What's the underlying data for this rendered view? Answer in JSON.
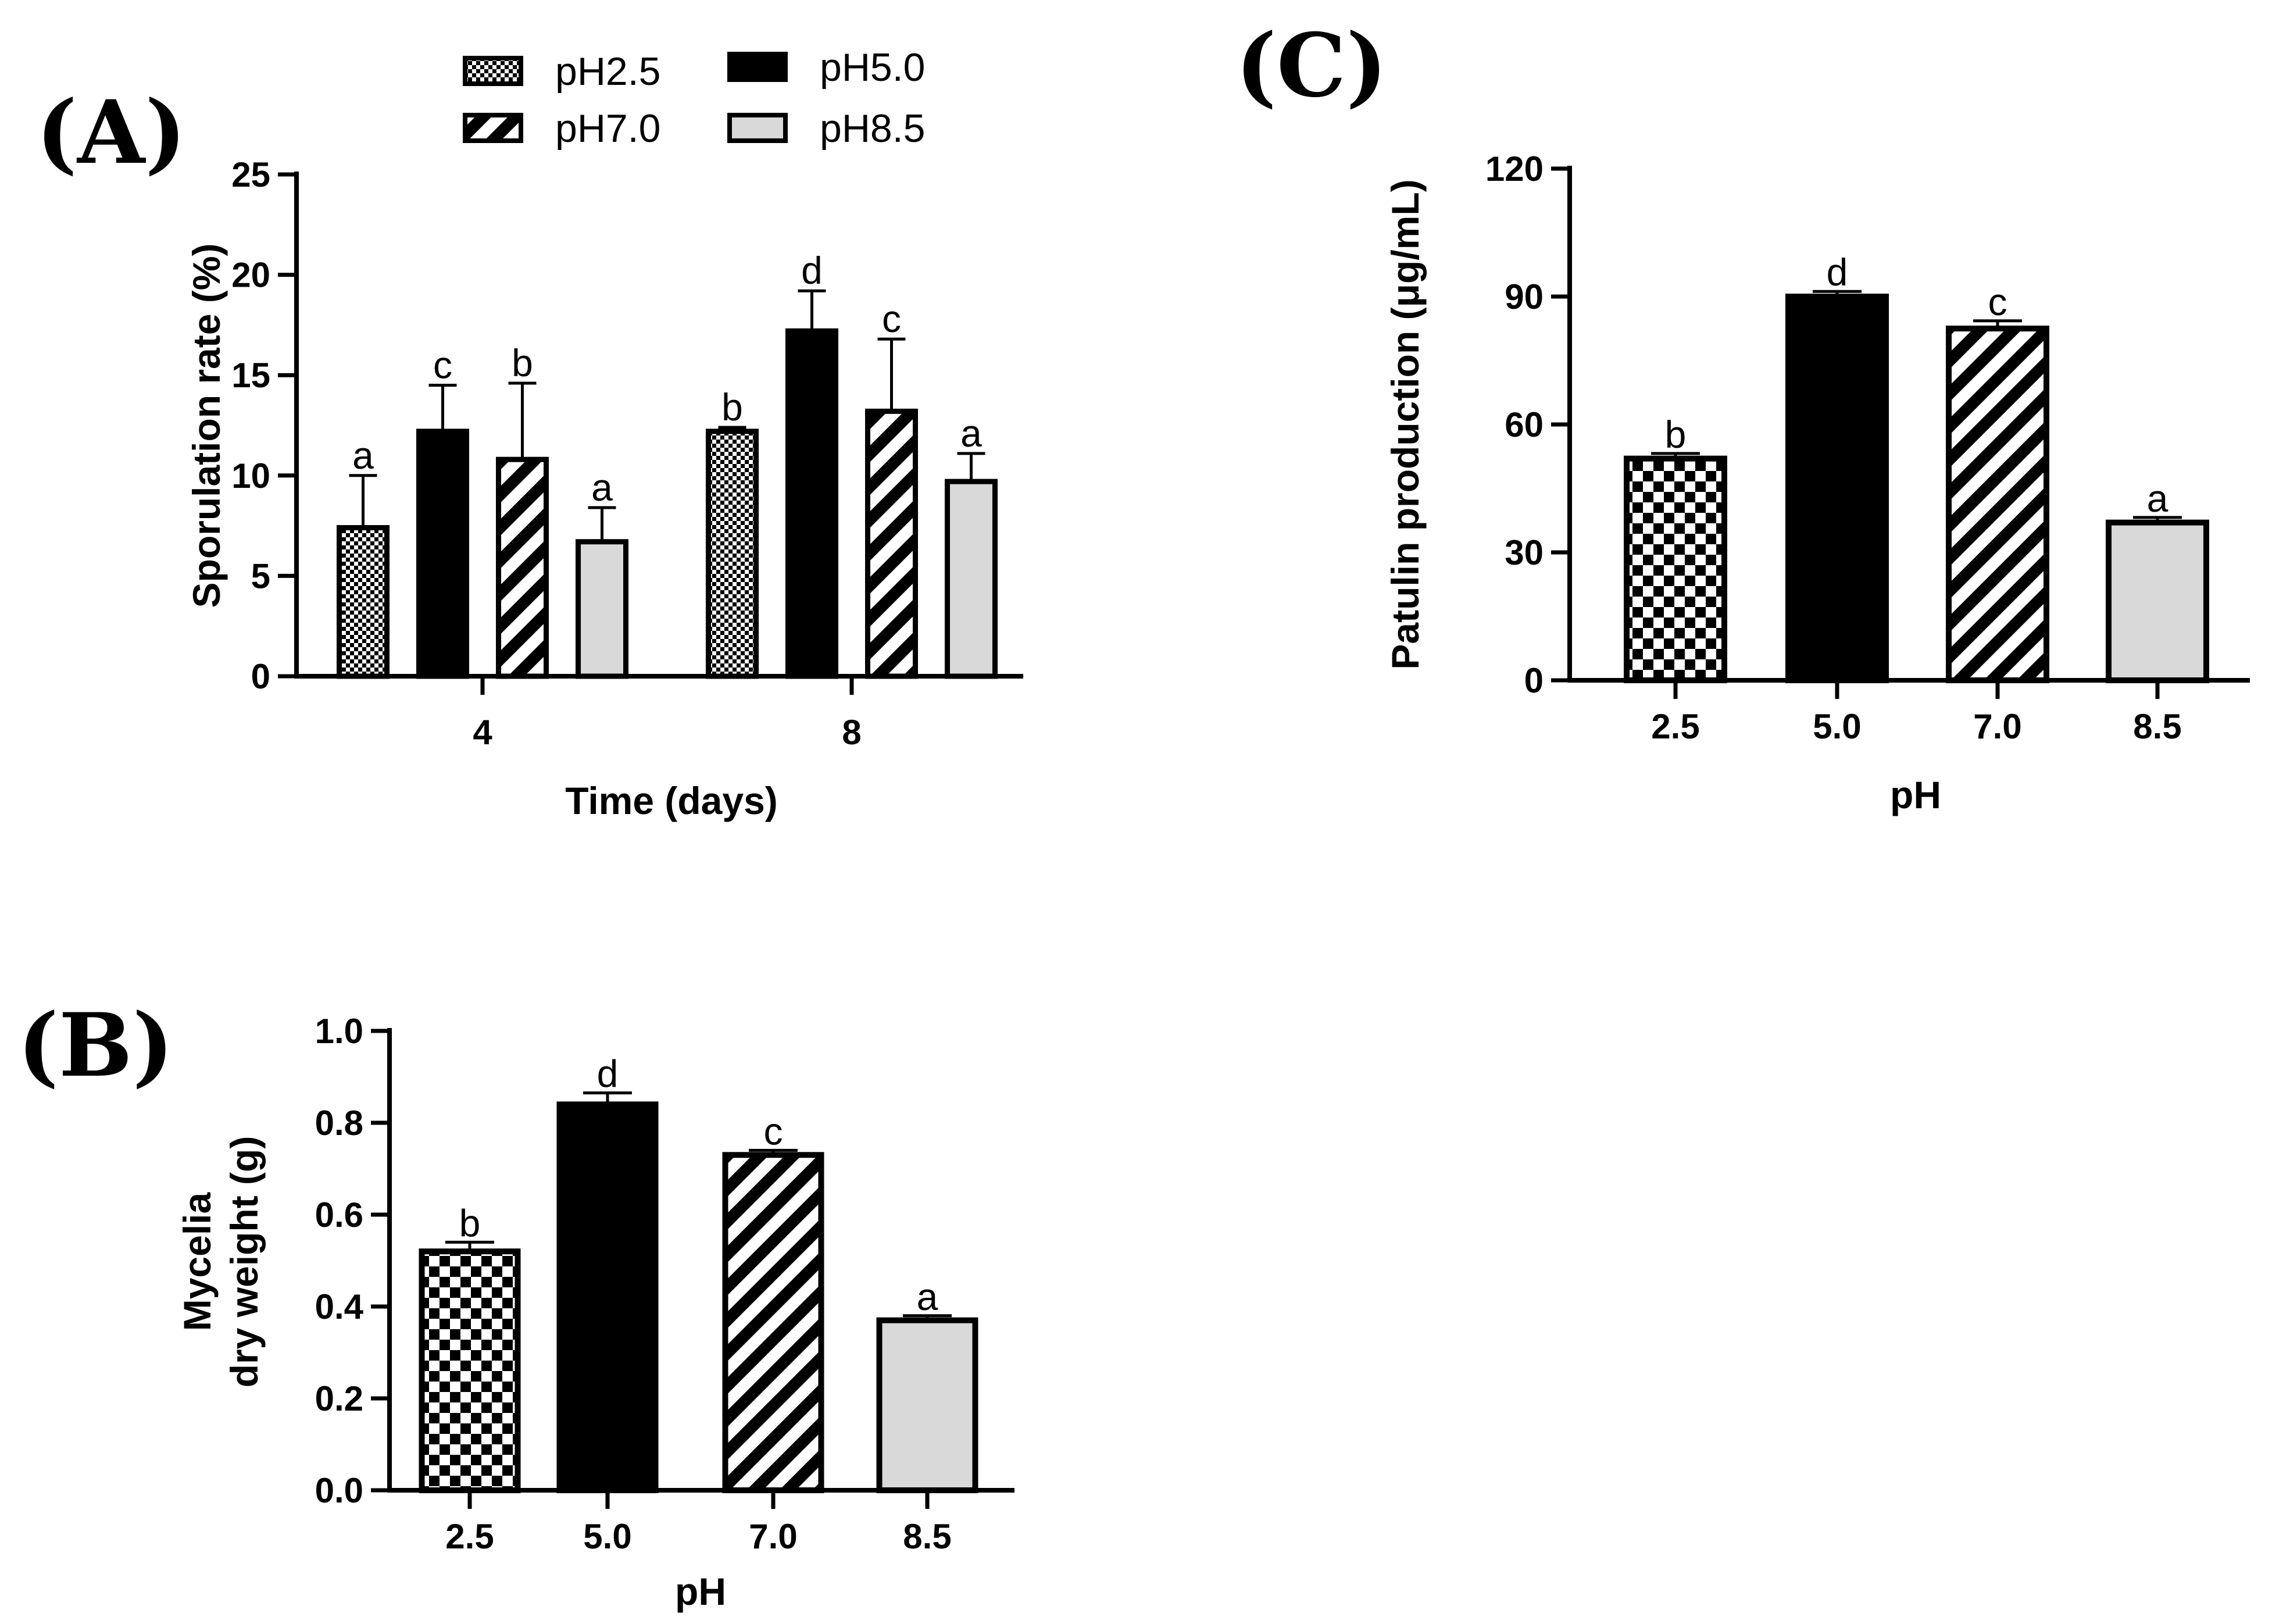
{
  "panels": {
    "A": "(A)",
    "B": "(B)",
    "C": "(C)"
  },
  "colors": {
    "ink": "#000000",
    "light_gray": "#d9d9d9",
    "background": "#ffffff"
  },
  "legend": [
    {
      "label": "pH2.5",
      "pattern": "dots"
    },
    {
      "label": "pH5.0",
      "pattern": "solid"
    },
    {
      "label": "pH7.0",
      "pattern": "diag"
    },
    {
      "label": "pH8.5",
      "pattern": "gray"
    }
  ],
  "chart_data": [
    {
      "id": "A",
      "type": "bar",
      "xlabel": "Time (days)",
      "ylabel": "Sporulation rate (%)",
      "ylim": [
        0,
        25
      ],
      "yticks": [
        0,
        5,
        10,
        15,
        20,
        25
      ],
      "categories": [
        "4",
        "8"
      ],
      "series": [
        {
          "name": "pH2.5",
          "pattern": "dots",
          "values": [
            7.4,
            12.2
          ],
          "errors": [
            2.6,
            0.2
          ],
          "letters": [
            "a",
            "b"
          ]
        },
        {
          "name": "pH5.0",
          "pattern": "solid",
          "values": [
            12.2,
            17.2
          ],
          "errors": [
            2.3,
            2.0
          ],
          "letters": [
            "c",
            "d"
          ]
        },
        {
          "name": "pH7.0",
          "pattern": "diag",
          "values": [
            10.8,
            13.2
          ],
          "errors": [
            3.8,
            3.6
          ],
          "letters": [
            "b",
            "c"
          ]
        },
        {
          "name": "pH8.5",
          "pattern": "gray",
          "values": [
            6.7,
            9.7
          ],
          "errors": [
            1.7,
            1.4
          ],
          "letters": [
            "a",
            "a"
          ]
        }
      ]
    },
    {
      "id": "B",
      "type": "bar",
      "xlabel": "pH",
      "ylabel": [
        "Mycelia",
        "dry weight (g)"
      ],
      "ylim": [
        0,
        1.0
      ],
      "yticks": [
        "0.0",
        "0.2",
        "0.4",
        "0.6",
        "0.8",
        "1.0"
      ],
      "categories": [
        "2.5",
        "5.0",
        "7.0",
        "8.5"
      ],
      "patterns": [
        "check",
        "solid",
        "diag",
        "gray"
      ],
      "values": [
        0.52,
        0.84,
        0.73,
        0.37
      ],
      "errors": [
        0.02,
        0.025,
        0.01,
        0.01
      ],
      "letters": [
        "b",
        "d",
        "c",
        "a"
      ]
    },
    {
      "id": "C",
      "type": "bar",
      "xlabel": "pH",
      "ylabel": "Patulin production (μg/mL)",
      "ylim": [
        0,
        120
      ],
      "yticks": [
        0,
        30,
        60,
        90,
        120
      ],
      "categories": [
        "2.5",
        "5.0",
        "7.0",
        "8.5"
      ],
      "patterns": [
        "check",
        "solid",
        "diag",
        "gray"
      ],
      "values": [
        52,
        90,
        82.5,
        37
      ],
      "errors": [
        1.2,
        1.2,
        1.8,
        1.2
      ],
      "letters": [
        "b",
        "d",
        "c",
        "a"
      ]
    }
  ]
}
